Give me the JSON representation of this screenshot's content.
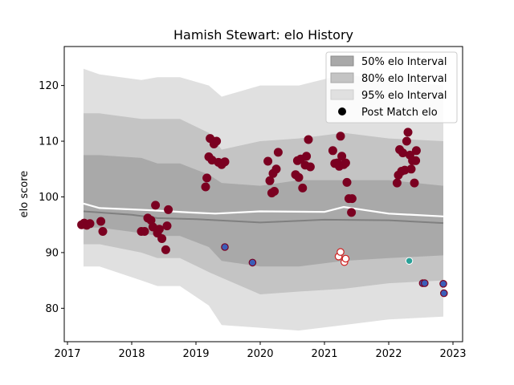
{
  "chart_data": {
    "type": "scatter",
    "title": "Hamish Stewart: elo History",
    "xlabel": "",
    "ylabel": "elo score",
    "xlim": [
      2016.95,
      2023.15
    ],
    "ylim": [
      74,
      127
    ],
    "xticks": [
      2017,
      2018,
      2019,
      2020,
      2021,
      2022,
      2023
    ],
    "yticks": [
      80,
      90,
      100,
      110,
      120
    ],
    "grid": false,
    "legend_position": "top-right",
    "legend": [
      {
        "label": "50% elo Interval",
        "kind": "band"
      },
      {
        "label": "80% elo Interval",
        "kind": "band"
      },
      {
        "label": "95% elo Interval",
        "kind": "band"
      },
      {
        "label": "Post Match elo",
        "kind": "marker"
      }
    ],
    "colors": {
      "band50": "#a9a9a9",
      "band80": "#c4c4c4",
      "band95": "#e0e0e0",
      "mean_line": "#ffffff",
      "median_line": "#808080",
      "win": "#7b0021",
      "loss_fill": "#3b5db8",
      "loss_edge": "#7b0021",
      "draw_fill": "#ffffff",
      "draw_edge": "#d02020",
      "teal": "#2aa198"
    },
    "bands": [
      {
        "x": 2017.25,
        "p2_5": 87.5,
        "p10": 91.5,
        "p25": 94.5,
        "p75": 107.5,
        "p90": 115,
        "p97_5": 123
      },
      {
        "x": 2017.5,
        "p2_5": 87.5,
        "p10": 91.5,
        "p25": 94.5,
        "p75": 107.5,
        "p90": 115,
        "p97_5": 122
      },
      {
        "x": 2018.15,
        "p2_5": 85,
        "p10": 90,
        "p25": 93.5,
        "p75": 107,
        "p90": 114,
        "p97_5": 121
      },
      {
        "x": 2018.4,
        "p2_5": 84,
        "p10": 89,
        "p25": 93,
        "p75": 106,
        "p90": 114,
        "p97_5": 121.5
      },
      {
        "x": 2018.75,
        "p2_5": 84,
        "p10": 89,
        "p25": 93,
        "p75": 106,
        "p90": 114,
        "p97_5": 121.5
      },
      {
        "x": 2019.2,
        "p2_5": 80.5,
        "p10": 86.5,
        "p25": 91,
        "p75": 104,
        "p90": 111.5,
        "p97_5": 120
      },
      {
        "x": 2019.4,
        "p2_5": 77,
        "p10": 85.5,
        "p25": 88.5,
        "p75": 102.5,
        "p90": 108.5,
        "p97_5": 118
      },
      {
        "x": 2020.0,
        "p2_5": 76.5,
        "p10": 82.5,
        "p25": 87.5,
        "p75": 102,
        "p90": 110,
        "p97_5": 120
      },
      {
        "x": 2020.6,
        "p2_5": 76,
        "p10": 83,
        "p25": 87.5,
        "p75": 103,
        "p90": 110.5,
        "p97_5": 120
      },
      {
        "x": 2021.3,
        "p2_5": 77,
        "p10": 83.5,
        "p25": 88.5,
        "p75": 103,
        "p90": 111.5,
        "p97_5": 122
      },
      {
        "x": 2022.0,
        "p2_5": 78,
        "p10": 84.5,
        "p25": 89,
        "p75": 103,
        "p90": 110.5,
        "p97_5": 121
      },
      {
        "x": 2022.85,
        "p2_5": 78.5,
        "p10": 85,
        "p25": 89.5,
        "p75": 102,
        "p90": 110,
        "p97_5": 120
      }
    ],
    "mean_line": [
      {
        "x": 2017.25,
        "y": 98.8
      },
      {
        "x": 2017.5,
        "y": 98.0
      },
      {
        "x": 2018.3,
        "y": 97.6
      },
      {
        "x": 2018.9,
        "y": 97.2
      },
      {
        "x": 2019.3,
        "y": 97.0
      },
      {
        "x": 2020.0,
        "y": 97.4
      },
      {
        "x": 2021.0,
        "y": 97.3
      },
      {
        "x": 2021.3,
        "y": 98.2
      },
      {
        "x": 2022.0,
        "y": 97.0
      },
      {
        "x": 2022.85,
        "y": 96.5
      }
    ],
    "median_line": [
      {
        "x": 2017.25,
        "y": 97.4
      },
      {
        "x": 2018.0,
        "y": 96.8
      },
      {
        "x": 2018.4,
        "y": 96.2
      },
      {
        "x": 2019.0,
        "y": 96.0
      },
      {
        "x": 2020.0,
        "y": 95.4
      },
      {
        "x": 2021.0,
        "y": 95.9
      },
      {
        "x": 2022.0,
        "y": 95.8
      },
      {
        "x": 2022.85,
        "y": 95.3
      }
    ],
    "points": [
      {
        "x": 2017.22,
        "y": 95.0,
        "result": "win"
      },
      {
        "x": 2017.26,
        "y": 95.3,
        "result": "win"
      },
      {
        "x": 2017.3,
        "y": 94.9,
        "result": "win"
      },
      {
        "x": 2017.35,
        "y": 95.2,
        "result": "win"
      },
      {
        "x": 2017.52,
        "y": 95.6,
        "result": "win"
      },
      {
        "x": 2017.55,
        "y": 93.8,
        "result": "win"
      },
      {
        "x": 2018.15,
        "y": 93.8,
        "result": "win"
      },
      {
        "x": 2018.2,
        "y": 93.8,
        "result": "win"
      },
      {
        "x": 2018.25,
        "y": 96.2,
        "result": "win"
      },
      {
        "x": 2018.3,
        "y": 95.8,
        "result": "win"
      },
      {
        "x": 2018.33,
        "y": 94.6,
        "result": "win"
      },
      {
        "x": 2018.37,
        "y": 98.5,
        "result": "win"
      },
      {
        "x": 2018.4,
        "y": 93.5,
        "result": "win"
      },
      {
        "x": 2018.43,
        "y": 94.2,
        "result": "win"
      },
      {
        "x": 2018.47,
        "y": 92.5,
        "result": "win"
      },
      {
        "x": 2018.53,
        "y": 90.5,
        "result": "win"
      },
      {
        "x": 2018.55,
        "y": 94.8,
        "result": "win"
      },
      {
        "x": 2018.57,
        "y": 97.7,
        "result": "win"
      },
      {
        "x": 2019.15,
        "y": 101.8,
        "result": "win"
      },
      {
        "x": 2019.17,
        "y": 103.4,
        "result": "win"
      },
      {
        "x": 2019.2,
        "y": 107.2,
        "result": "win"
      },
      {
        "x": 2019.22,
        "y": 110.5,
        "result": "win"
      },
      {
        "x": 2019.25,
        "y": 106.6,
        "result": "win"
      },
      {
        "x": 2019.28,
        "y": 109.5,
        "result": "win"
      },
      {
        "x": 2019.32,
        "y": 110.0,
        "result": "win"
      },
      {
        "x": 2019.35,
        "y": 106.2,
        "result": "win"
      },
      {
        "x": 2019.4,
        "y": 105.8,
        "result": "win"
      },
      {
        "x": 2019.45,
        "y": 106.3,
        "result": "win"
      },
      {
        "x": 2019.45,
        "y": 91.0,
        "result": "loss"
      },
      {
        "x": 2019.88,
        "y": 88.2,
        "result": "loss"
      },
      {
        "x": 2020.12,
        "y": 106.4,
        "result": "win"
      },
      {
        "x": 2020.15,
        "y": 102.9,
        "result": "win"
      },
      {
        "x": 2020.18,
        "y": 100.7,
        "result": "win"
      },
      {
        "x": 2020.2,
        "y": 104.2,
        "result": "win"
      },
      {
        "x": 2020.22,
        "y": 101.0,
        "result": "win"
      },
      {
        "x": 2020.25,
        "y": 105.0,
        "result": "win"
      },
      {
        "x": 2020.28,
        "y": 108.0,
        "result": "win"
      },
      {
        "x": 2020.55,
        "y": 104.0,
        "result": "win"
      },
      {
        "x": 2020.58,
        "y": 106.5,
        "result": "win"
      },
      {
        "x": 2020.6,
        "y": 103.5,
        "result": "win"
      },
      {
        "x": 2020.63,
        "y": 106.8,
        "result": "win"
      },
      {
        "x": 2020.66,
        "y": 101.6,
        "result": "win"
      },
      {
        "x": 2020.7,
        "y": 105.7,
        "result": "win"
      },
      {
        "x": 2020.72,
        "y": 107.3,
        "result": "win"
      },
      {
        "x": 2020.75,
        "y": 110.3,
        "result": "win"
      },
      {
        "x": 2020.78,
        "y": 105.4,
        "result": "win"
      },
      {
        "x": 2021.13,
        "y": 108.3,
        "result": "win"
      },
      {
        "x": 2021.16,
        "y": 106.0,
        "result": "win"
      },
      {
        "x": 2021.2,
        "y": 106.1,
        "result": "win"
      },
      {
        "x": 2021.23,
        "y": 105.5,
        "result": "win"
      },
      {
        "x": 2021.25,
        "y": 110.9,
        "result": "win"
      },
      {
        "x": 2021.27,
        "y": 107.3,
        "result": "win"
      },
      {
        "x": 2021.3,
        "y": 105.8,
        "result": "win"
      },
      {
        "x": 2021.33,
        "y": 106.1,
        "result": "win"
      },
      {
        "x": 2021.35,
        "y": 102.6,
        "result": "win"
      },
      {
        "x": 2021.38,
        "y": 99.7,
        "result": "win"
      },
      {
        "x": 2021.43,
        "y": 99.7,
        "result": "win"
      },
      {
        "x": 2021.42,
        "y": 97.2,
        "result": "win"
      },
      {
        "x": 2021.22,
        "y": 89.3,
        "result": "draw"
      },
      {
        "x": 2021.25,
        "y": 90.1,
        "result": "draw"
      },
      {
        "x": 2021.31,
        "y": 88.3,
        "result": "draw"
      },
      {
        "x": 2021.33,
        "y": 88.9,
        "result": "draw"
      },
      {
        "x": 2022.13,
        "y": 102.5,
        "result": "win"
      },
      {
        "x": 2022.15,
        "y": 103.9,
        "result": "win"
      },
      {
        "x": 2022.17,
        "y": 108.5,
        "result": "win"
      },
      {
        "x": 2022.2,
        "y": 104.6,
        "result": "win"
      },
      {
        "x": 2022.22,
        "y": 107.9,
        "result": "win"
      },
      {
        "x": 2022.25,
        "y": 104.8,
        "result": "win"
      },
      {
        "x": 2022.28,
        "y": 110.0,
        "result": "win"
      },
      {
        "x": 2022.3,
        "y": 111.6,
        "result": "win"
      },
      {
        "x": 2022.33,
        "y": 107.5,
        "result": "win"
      },
      {
        "x": 2022.35,
        "y": 105.0,
        "result": "win"
      },
      {
        "x": 2022.37,
        "y": 106.5,
        "result": "win"
      },
      {
        "x": 2022.4,
        "y": 102.5,
        "result": "win"
      },
      {
        "x": 2022.42,
        "y": 106.5,
        "result": "win"
      },
      {
        "x": 2022.43,
        "y": 108.3,
        "result": "win"
      },
      {
        "x": 2022.32,
        "y": 88.5,
        "result": "teal"
      },
      {
        "x": 2022.53,
        "y": 84.5,
        "result": "loss"
      },
      {
        "x": 2022.56,
        "y": 84.5,
        "result": "loss"
      },
      {
        "x": 2022.85,
        "y": 84.4,
        "result": "loss"
      },
      {
        "x": 2022.86,
        "y": 82.7,
        "result": "loss"
      }
    ]
  }
}
